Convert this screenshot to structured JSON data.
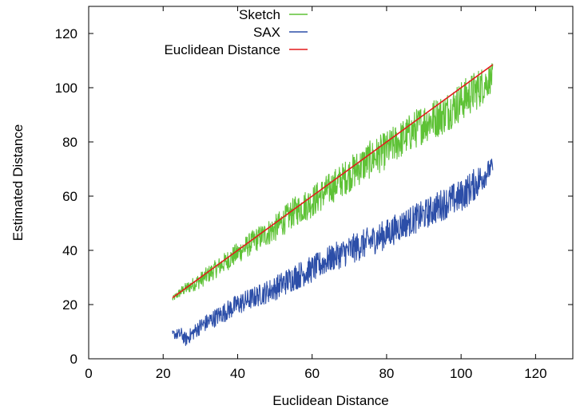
{
  "chart_data": {
    "type": "line",
    "title": "",
    "xlabel": "Euclidean Distance",
    "ylabel": "Estimated Distance",
    "xlim": [
      0,
      130
    ],
    "ylim": [
      0,
      130
    ],
    "x_ticks": [
      0,
      20,
      40,
      60,
      80,
      100,
      120
    ],
    "y_ticks": [
      0,
      20,
      40,
      60,
      80,
      100,
      120
    ],
    "grid": false,
    "legend_position": "top-center",
    "series": [
      {
        "name": "Sketch",
        "color": "#5ec236",
        "x": [
          22.5,
          25,
          30,
          35,
          40,
          45,
          50,
          55,
          60,
          65,
          70,
          75,
          80,
          85,
          90,
          95,
          100,
          105,
          108.5
        ],
        "y": [
          22,
          25,
          29,
          34,
          39,
          44,
          48,
          54,
          58,
          63,
          68,
          73,
          77,
          82,
          87,
          90,
          95,
          100,
          104
        ],
        "spread": [
          1,
          2,
          3,
          3.5,
          4,
          4.5,
          5,
          5.5,
          6,
          6,
          6.5,
          7,
          7,
          7,
          7.5,
          7.5,
          7.5,
          7.5,
          5
        ]
      },
      {
        "name": "SAX",
        "color": "#2c4ea8",
        "x": [
          22.5,
          25,
          26,
          30,
          35,
          40,
          45,
          50,
          55,
          60,
          65,
          70,
          75,
          80,
          85,
          90,
          95,
          100,
          105,
          108.5
        ],
        "y": [
          9,
          9,
          7,
          12,
          16,
          20,
          23,
          26,
          30,
          33,
          37,
          40,
          43,
          46,
          50,
          53,
          57,
          60,
          66,
          71
        ],
        "spread": [
          1.5,
          2.5,
          2.5,
          3,
          3.5,
          4,
          4,
          4.5,
          5,
          5,
          5,
          5.5,
          5.5,
          5.5,
          5.5,
          5.5,
          6,
          6,
          6,
          3
        ]
      },
      {
        "name": "Euclidean Distance",
        "color": "#e41a1c",
        "x": [
          22.5,
          108.5
        ],
        "y": [
          22.5,
          108.5
        ]
      }
    ]
  }
}
